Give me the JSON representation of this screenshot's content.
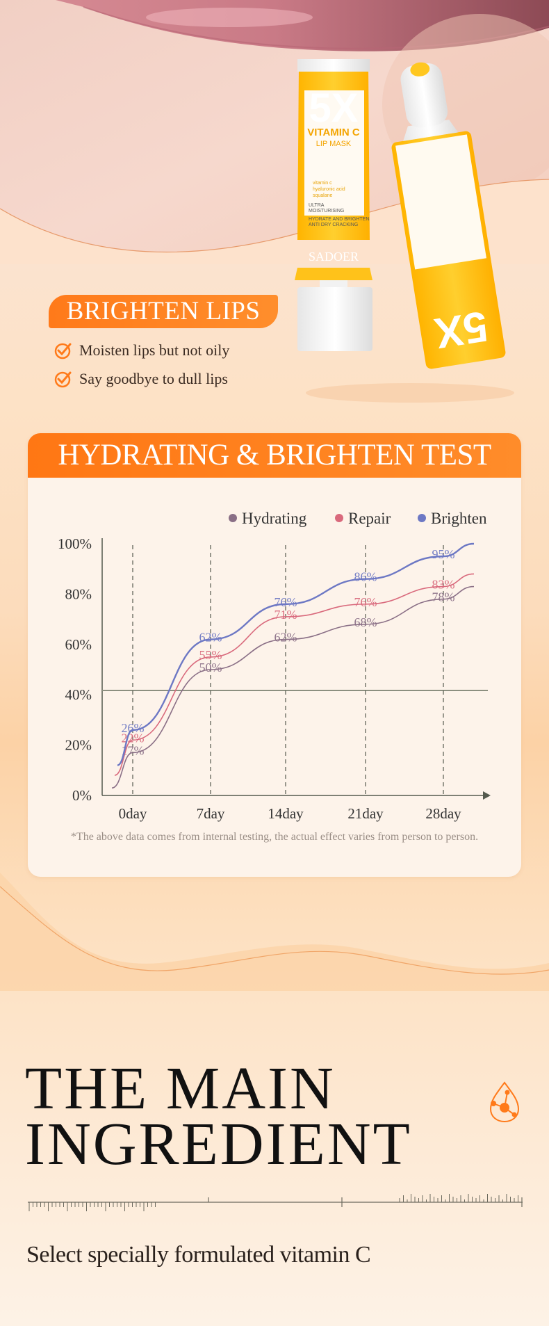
{
  "hero": {
    "tube_front": {
      "big": "5X",
      "name": "VITAMIN C",
      "type": "LIP MASK",
      "ingredients": [
        "vitamin c",
        "hyaluronic acid",
        "squalane"
      ],
      "claims": [
        "ULTRA",
        "MOISTURISING",
        "HYDRATE AND BRIGHTEN",
        "ANTI DRY CRACKING"
      ],
      "brand": "SADOER"
    }
  },
  "brighten": {
    "title": "BRIGHTEN LIPS",
    "points": [
      "Moisten lips but not oily",
      "Say goodbye to dull lips"
    ]
  },
  "test": {
    "title": "HYDRATING & BRIGHTEN TEST",
    "footnote": "*The above data comes from internal testing, the actual effect varies from person to person."
  },
  "chart_data": {
    "type": "line",
    "categories": [
      "0day",
      "7day",
      "14day",
      "21day",
      "28day"
    ],
    "y_ticks": [
      "0%",
      "20%",
      "40%",
      "60%",
      "80%",
      "100%"
    ],
    "ylim": [
      0,
      100
    ],
    "legend_position": "top-right",
    "series": [
      {
        "name": "Hydrating",
        "color": "#8a6f86",
        "values": [
          17,
          50,
          62,
          68,
          78
        ]
      },
      {
        "name": "Repair",
        "color": "#d9697c",
        "values": [
          22,
          55,
          71,
          76,
          83
        ]
      },
      {
        "name": "Brighten",
        "color": "#6d78c4",
        "values": [
          26,
          62,
          76,
          86,
          95
        ]
      }
    ]
  },
  "ingredient": {
    "title_line1": "THE MAIN",
    "title_line2": "INGREDIENT",
    "subtitle": "Select specially formulated vitamin C"
  },
  "colors": {
    "accent": "#ff7a1a",
    "tube_yellow": "#ffc21a",
    "card_bg": "#fdf3ea"
  }
}
